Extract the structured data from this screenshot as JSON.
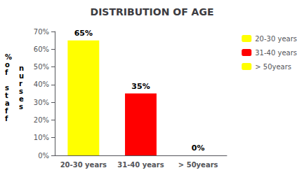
{
  "chart_data": {
    "type": "bar",
    "title": "DISTRIBUTION OF AGE",
    "categories": [
      "20-30 years",
      "31-40 years",
      "> 50years"
    ],
    "values": [
      65,
      35,
      0
    ],
    "value_labels": [
      "65%",
      "35%",
      "0%"
    ],
    "data_labels": true,
    "colors": [
      "yellow",
      "red",
      "yellow"
    ],
    "ylabel": [
      "%\no\nf\n\ns\nt\na\nf\nf",
      "n\nu\nr\ns\ne\ns"
    ],
    "ylim": [
      0,
      70
    ],
    "yticks": [
      {
        "value": 0,
        "label": "0%"
      },
      {
        "value": 10,
        "label": "10%"
      },
      {
        "value": 20,
        "label": "20%"
      },
      {
        "value": 30,
        "label": "30%"
      },
      {
        "value": 40,
        "label": "40%"
      },
      {
        "value": 50,
        "label": "50%"
      },
      {
        "value": 60,
        "label": "60%"
      },
      {
        "value": 70,
        "label": "70%"
      }
    ],
    "grid": false,
    "legend": "right"
  }
}
